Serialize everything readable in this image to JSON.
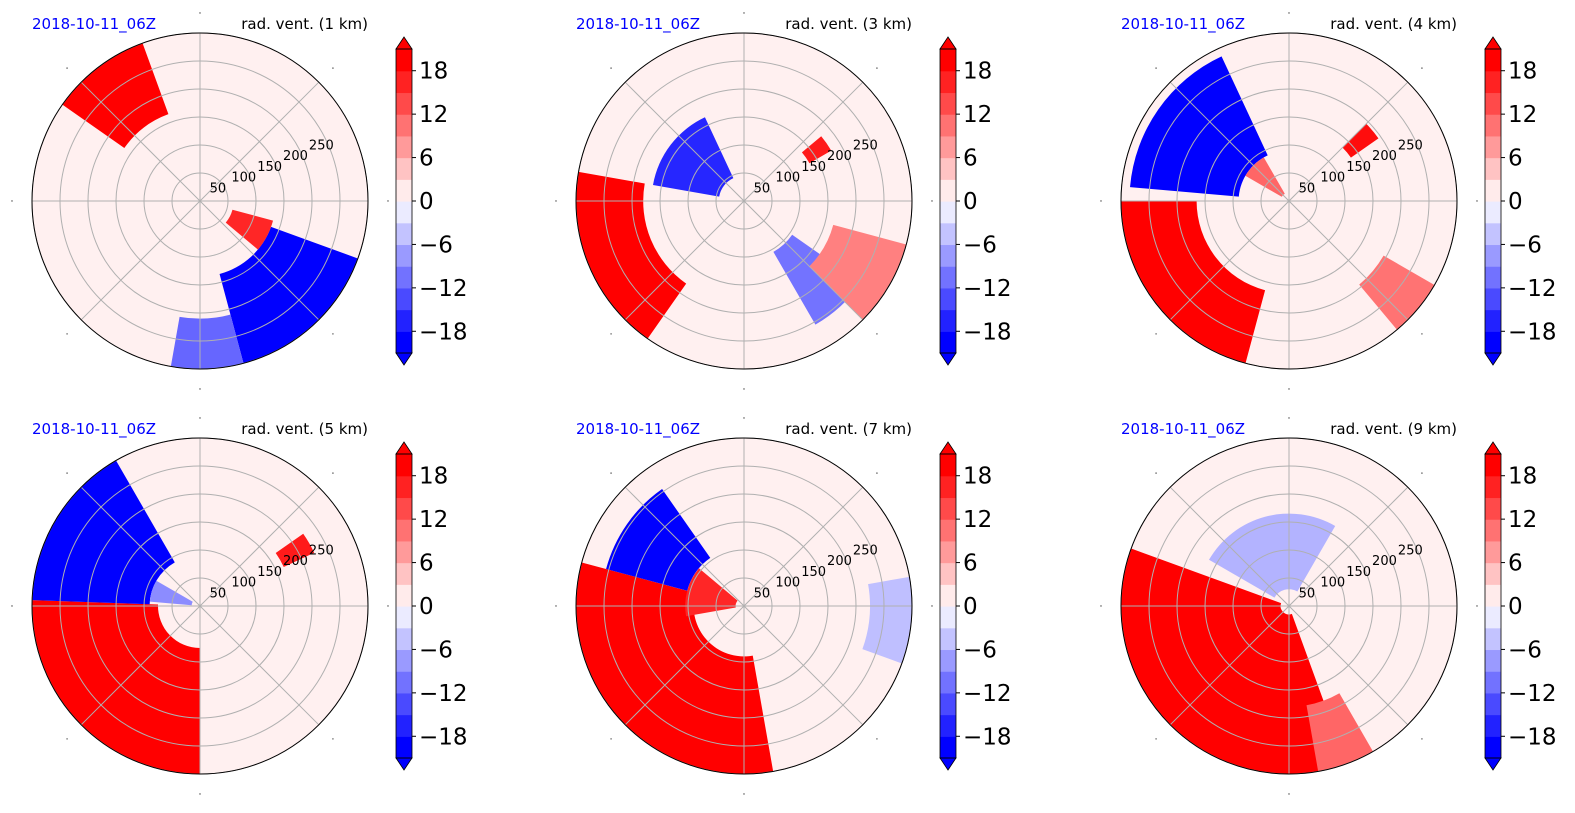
{
  "colors": {
    "date": "#0000ff",
    "positive": "#ff0000",
    "negative": "#0000ff",
    "neutral": "#ffffff",
    "grid": "#b0b0b0"
  },
  "chart_data": [
    {
      "type": "heatmap",
      "projection": "polar",
      "date": "2018-10-11_06Z",
      "title": "rad. vent. (1 km)",
      "radial_ticks": [
        "50",
        "100",
        "150",
        "200",
        "250"
      ],
      "colorbar": {
        "ticks": [
          "18",
          "12",
          "6",
          "0",
          "−6",
          "−12",
          "−18"
        ],
        "range": [
          -21,
          21
        ],
        "extend": "both"
      },
      "features": [
        {
          "sign": 1,
          "intensity": 1.0,
          "angle": [
            110,
            145
          ],
          "r": [
            0.55,
            1.0
          ]
        },
        {
          "sign": -1,
          "intensity": 1.0,
          "angle": [
            -75,
            -20
          ],
          "r": [
            0.45,
            1.0
          ]
        },
        {
          "sign": 1,
          "intensity": 0.85,
          "angle": [
            -40,
            -15
          ],
          "r": [
            0.2,
            0.45
          ]
        },
        {
          "sign": -1,
          "intensity": 0.6,
          "angle": [
            -100,
            -75
          ],
          "r": [
            0.7,
            1.0
          ]
        }
      ]
    },
    {
      "type": "heatmap",
      "projection": "polar",
      "date": "2018-10-11_06Z",
      "title": "rad. vent. (3 km)",
      "radial_ticks": [
        "50",
        "100",
        "150",
        "200",
        "250"
      ],
      "colorbar": {
        "ticks": [
          "18",
          "12",
          "6",
          "0",
          "−6",
          "−12",
          "−18"
        ],
        "range": [
          -21,
          21
        ],
        "extend": "both"
      },
      "features": [
        {
          "sign": 1,
          "intensity": 1.0,
          "angle": [
            170,
            235
          ],
          "r": [
            0.6,
            1.0
          ]
        },
        {
          "sign": -1,
          "intensity": 0.85,
          "angle": [
            115,
            170
          ],
          "r": [
            0.15,
            0.55
          ]
        },
        {
          "sign": 1,
          "intensity": 0.9,
          "angle": [
            30,
            40
          ],
          "r": [
            0.45,
            0.6
          ]
        },
        {
          "sign": -1,
          "intensity": 0.55,
          "angle": [
            -60,
            -35
          ],
          "r": [
            0.35,
            0.85
          ]
        },
        {
          "sign": 1,
          "intensity": 0.5,
          "angle": [
            -45,
            -15
          ],
          "r": [
            0.55,
            1.0
          ]
        }
      ]
    },
    {
      "type": "heatmap",
      "projection": "polar",
      "date": "2018-10-11_06Z",
      "title": "rad. vent. (4 km)",
      "radial_ticks": [
        "50",
        "100",
        "150",
        "200",
        "250"
      ],
      "colorbar": {
        "ticks": [
          "18",
          "12",
          "6",
          "0",
          "−6",
          "−12",
          "−18"
        ],
        "range": [
          -21,
          21
        ],
        "extend": "both"
      },
      "features": [
        {
          "sign": 1,
          "intensity": 1.0,
          "angle": [
            180,
            255
          ],
          "r": [
            0.55,
            1.0
          ]
        },
        {
          "sign": -1,
          "intensity": 1.0,
          "angle": [
            115,
            175
          ],
          "r": [
            0.3,
            0.95
          ]
        },
        {
          "sign": 1,
          "intensity": 0.95,
          "angle": [
            35,
            45
          ],
          "r": [
            0.45,
            0.65
          ]
        },
        {
          "sign": 1,
          "intensity": 0.55,
          "angle": [
            -50,
            -30
          ],
          "r": [
            0.65,
            1.0
          ]
        },
        {
          "sign": 1,
          "intensity": 0.6,
          "angle": [
            120,
            150
          ],
          "r": [
            0.05,
            0.3
          ]
        }
      ]
    },
    {
      "type": "heatmap",
      "projection": "polar",
      "date": "2018-10-11_06Z",
      "title": "rad. vent. (5 km)",
      "radial_ticks": [
        "50",
        "100",
        "150",
        "200",
        "250"
      ],
      "colorbar": {
        "ticks": [
          "18",
          "12",
          "6",
          "0",
          "−6",
          "−12",
          "−18"
        ],
        "range": [
          -21,
          21
        ],
        "extend": "both"
      },
      "features": [
        {
          "sign": 1,
          "intensity": 1.0,
          "angle": [
            178,
            270
          ],
          "r": [
            0.25,
            1.0
          ]
        },
        {
          "sign": -1,
          "intensity": 1.0,
          "angle": [
            120,
            178
          ],
          "r": [
            0.3,
            1.0
          ]
        },
        {
          "sign": 1,
          "intensity": 0.9,
          "angle": [
            25,
            35
          ],
          "r": [
            0.55,
            0.75
          ]
        },
        {
          "sign": -1,
          "intensity": 0.45,
          "angle": [
            150,
            175
          ],
          "r": [
            0.05,
            0.3
          ]
        }
      ]
    },
    {
      "type": "heatmap",
      "projection": "polar",
      "date": "2018-10-11_06Z",
      "title": "rad. vent. (7 km)",
      "radial_ticks": [
        "50",
        "100",
        "150",
        "200",
        "250"
      ],
      "colorbar": {
        "ticks": [
          "18",
          "12",
          "6",
          "0",
          "−6",
          "−12",
          "−18"
        ],
        "range": [
          -21,
          21
        ],
        "extend": "both"
      },
      "features": [
        {
          "sign": 1,
          "intensity": 1.0,
          "angle": [
            165,
            280
          ],
          "r": [
            0.3,
            1.0
          ]
        },
        {
          "sign": -1,
          "intensity": 1.0,
          "angle": [
            125,
            165
          ],
          "r": [
            0.35,
            0.85
          ]
        },
        {
          "sign": 1,
          "intensity": 0.85,
          "angle": [
            140,
            190
          ],
          "r": [
            0.05,
            0.35
          ]
        },
        {
          "sign": -1,
          "intensity": 0.25,
          "angle": [
            -20,
            10
          ],
          "r": [
            0.75,
            1.0
          ]
        }
      ]
    },
    {
      "type": "heatmap",
      "projection": "polar",
      "date": "2018-10-11_06Z",
      "title": "rad. vent. (9 km)",
      "radial_ticks": [
        "50",
        "100",
        "150",
        "200",
        "250"
      ],
      "colorbar": {
        "ticks": [
          "18",
          "12",
          "6",
          "0",
          "−6",
          "−12",
          "−18"
        ],
        "range": [
          -21,
          21
        ],
        "extend": "both"
      },
      "features": [
        {
          "sign": 1,
          "intensity": 1.0,
          "angle": [
            160,
            290
          ],
          "r": [
            0.05,
            1.0
          ]
        },
        {
          "sign": -1,
          "intensity": 0.3,
          "angle": [
            60,
            150
          ],
          "r": [
            0.1,
            0.55
          ]
        },
        {
          "sign": 1,
          "intensity": 0.6,
          "angle": [
            -80,
            -60
          ],
          "r": [
            0.6,
            1.0
          ]
        }
      ]
    }
  ]
}
